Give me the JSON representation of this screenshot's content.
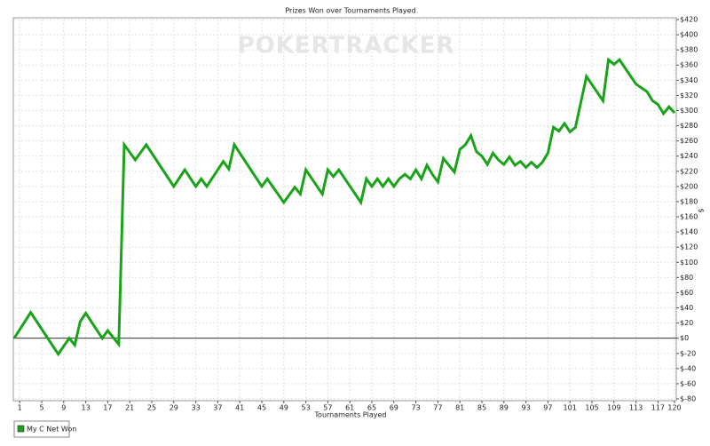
{
  "chart_data": {
    "type": "line",
    "title": "Prizes Won over Tournaments Played",
    "watermark": "POKERTRACKER",
    "x_label": "Tournaments Played",
    "y_label": "$",
    "x": [
      0,
      3,
      8,
      10,
      11,
      12,
      13,
      16,
      17,
      19,
      20,
      22,
      24,
      29,
      31,
      33,
      34,
      35,
      38,
      39,
      40,
      45,
      46,
      49,
      51,
      52,
      53,
      56,
      57,
      58,
      59,
      63,
      64,
      65,
      66,
      67,
      68,
      69,
      70,
      71,
      72,
      73,
      74,
      75,
      76,
      77,
      78,
      80,
      81,
      82,
      83,
      84,
      85,
      86,
      87,
      88,
      89,
      90,
      91,
      92,
      93,
      94,
      95,
      96,
      97,
      98,
      99,
      100,
      101,
      102,
      104,
      107,
      108,
      109,
      110,
      113,
      115,
      116,
      117,
      118,
      119,
      120
    ],
    "series": [
      {
        "name": "My C Net Won",
        "color": "#19a319",
        "values": [
          0,
          34,
          -21,
          0,
          -9,
          22,
          33,
          0,
          10,
          -8,
          255,
          235,
          255,
          200,
          222,
          200,
          210,
          200,
          233,
          223,
          255,
          200,
          210,
          179,
          199,
          190,
          222,
          190,
          222,
          213,
          222,
          179,
          210,
          200,
          210,
          200,
          210,
          200,
          210,
          216,
          210,
          222,
          210,
          228,
          216,
          206,
          237,
          219,
          249,
          255,
          267,
          246,
          240,
          229,
          244,
          235,
          229,
          239,
          228,
          233,
          225,
          232,
          225,
          232,
          244,
          278,
          273,
          283,
          272,
          278,
          345,
          313,
          367,
          361,
          367,
          335,
          325,
          313,
          308,
          296,
          305,
          297
        ]
      }
    ],
    "xlim": [
      0,
      120
    ],
    "xticks": [
      1,
      5,
      9,
      13,
      17,
      21,
      25,
      29,
      33,
      37,
      41,
      45,
      49,
      53,
      57,
      61,
      65,
      69,
      73,
      77,
      81,
      85,
      89,
      93,
      97,
      101,
      105,
      109,
      113,
      117,
      120
    ],
    "ylim": [
      -80,
      420
    ],
    "yticks": [
      {
        "value": 420,
        "label": "$420"
      },
      {
        "value": 400,
        "label": "$400"
      },
      {
        "value": 380,
        "label": "$380"
      },
      {
        "value": 360,
        "label": "$360"
      },
      {
        "value": 340,
        "label": "$340"
      },
      {
        "value": 320,
        "label": "$320"
      },
      {
        "value": 300,
        "label": "$300"
      },
      {
        "value": 280,
        "label": "$280"
      },
      {
        "value": 260,
        "label": "$260"
      },
      {
        "value": 240,
        "label": "$240"
      },
      {
        "value": 220,
        "label": "$220"
      },
      {
        "value": 200,
        "label": "$200"
      },
      {
        "value": 180,
        "label": "$180"
      },
      {
        "value": 160,
        "label": "$160"
      },
      {
        "value": 140,
        "label": "$140"
      },
      {
        "value": 120,
        "label": "$120"
      },
      {
        "value": 100,
        "label": "$100"
      },
      {
        "value": 80,
        "label": "$80"
      },
      {
        "value": 60,
        "label": "$60"
      },
      {
        "value": 40,
        "label": "$40"
      },
      {
        "value": 20,
        "label": "$20"
      },
      {
        "value": 0,
        "label": "$0"
      },
      {
        "value": -20,
        "label": "$-20"
      },
      {
        "value": -40,
        "label": "$-40"
      },
      {
        "value": -60,
        "label": "$-60"
      },
      {
        "value": -80,
        "label": "$-80"
      }
    ],
    "grid": true,
    "legend": "bottom-left"
  }
}
